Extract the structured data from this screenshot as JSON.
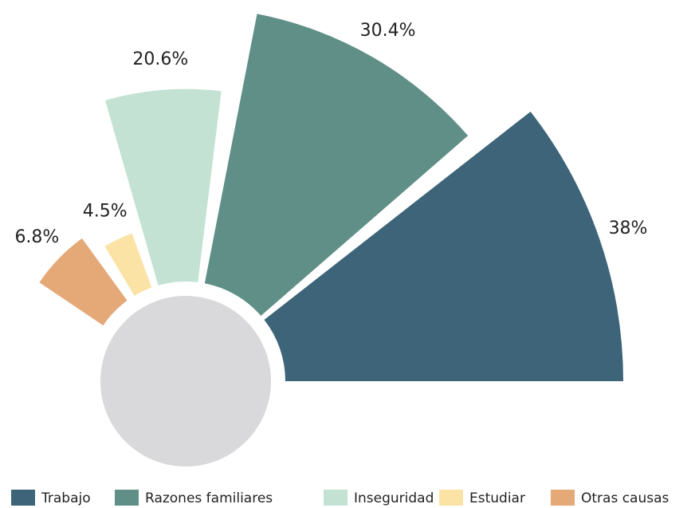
{
  "chart_data": {
    "type": "polar",
    "categories": [
      "Trabajo",
      "Razones familiares",
      "Inseguridad",
      "Estudiar",
      "Otras causas"
    ],
    "values": [
      38,
      30.4,
      20.6,
      4.5,
      6.8
    ],
    "value_labels": [
      "38%",
      "30.4%",
      "20.6%",
      "4.5%",
      "6.8%"
    ],
    "colors": [
      "#3d6479",
      "#5f8f86",
      "#c3e2d3",
      "#fbe3a5",
      "#e5a877"
    ],
    "legend": "bottom"
  }
}
